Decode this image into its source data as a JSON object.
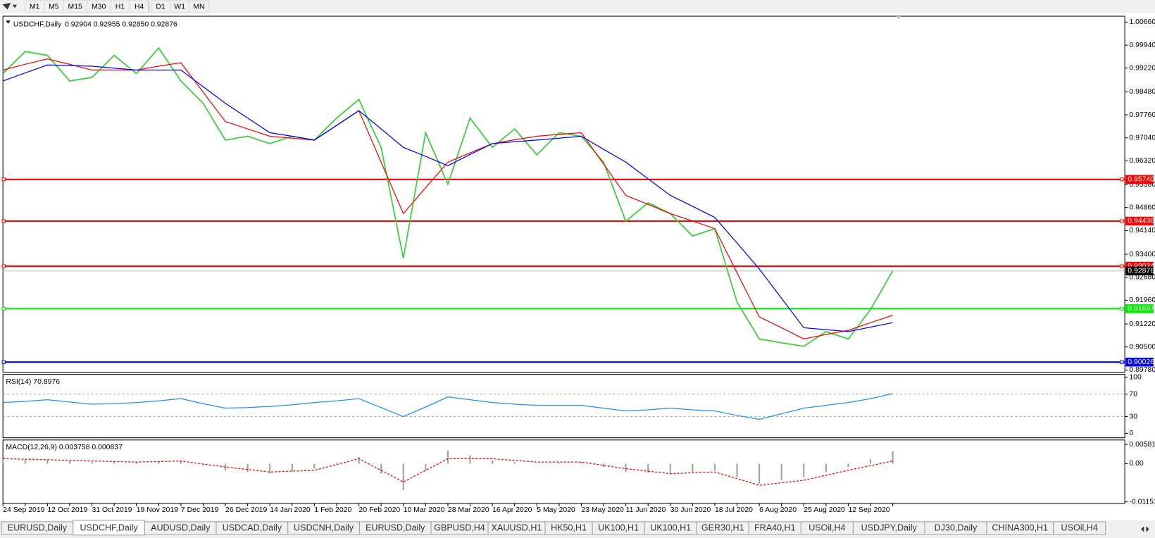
{
  "toolbar": {
    "timeframes": [
      "M1",
      "M5",
      "M15",
      "M30",
      "H1",
      "H4",
      "D1",
      "W1",
      "MN"
    ]
  },
  "chart_data": [
    {
      "type": "line",
      "title": "USDCHF,Daily",
      "subtitle": "0.92904 0.92955 0.92850 0.92876",
      "categories": [
        "24 Sep 2019",
        null,
        "12 Oct 2019",
        null,
        "31 Oct 2019",
        null,
        "19 Nov 2019",
        null,
        "7 Dec 2019",
        null,
        "26 Dec 2019",
        null,
        "14 Jan 2020",
        null,
        "1 Feb 2020",
        null,
        "20 Feb 2020",
        null,
        "10 Mar 2020",
        null,
        "28 Mar 2020",
        null,
        "16 Apr 2020",
        null,
        "5 May 2020",
        null,
        "23 May 2020",
        null,
        "11 Jun 2020",
        null,
        "30 Jun 2020",
        null,
        "18 Jul 2020",
        null,
        "6 Aug 2020",
        null,
        "25 Aug 2020",
        null,
        "12 Sep 2020",
        null,
        null
      ],
      "series": [
        {
          "color": "#32cd32",
          "values": [
            0.9905,
            0.9974,
            0.9962,
            0.9882,
            0.9893,
            0.9962,
            0.9905,
            0.9985,
            0.9882,
            0.9812,
            0.9697,
            0.9709,
            0.9686,
            0.9709,
            0.9697,
            0.9766,
            0.9824,
            0.9674,
            0.9328,
            0.972,
            0.9559,
            0.9766,
            0.9674,
            0.9732,
            0.9651,
            0.972,
            0.9709,
            0.9628,
            0.9443,
            0.9501,
            0.9467,
            0.9397,
            0.942,
            0.919,
            0.9075,
            0.9063,
            0.9052,
            0.9098,
            0.9075,
            0.9167,
            0.9288
          ]
        },
        {
          "color": "#ff0000",
          "values": [
            0.9916,
            0.9934,
            0.9951,
            0.9934,
            0.9916,
            0.9916,
            0.9916,
            0.9928,
            0.9939,
            0.9847,
            0.9755,
            0.9732,
            0.9709,
            0.9703,
            0.9697,
            0.9743,
            0.9789,
            0.9628,
            0.9467,
            0.9548,
            0.9628,
            0.9657,
            0.9686,
            0.9698,
            0.9709,
            0.9715,
            0.972,
            0.9622,
            0.9524,
            0.9496,
            0.9467,
            0.9444,
            0.942,
            0.9282,
            0.9144,
            0.911,
            0.9075,
            0.9089,
            0.9102,
            0.9126,
            0.9149
          ]
        },
        {
          "color": "#0000ff",
          "values": [
            0.9882,
            0.9907,
            0.9932,
            0.993,
            0.9928,
            0.9922,
            0.9916,
            0.9916,
            0.9916,
            0.9864,
            0.9812,
            0.9766,
            0.972,
            0.9709,
            0.9697,
            0.9743,
            0.9789,
            0.9732,
            0.9674,
            0.9646,
            0.9617,
            0.9652,
            0.9686,
            0.9692,
            0.9697,
            0.9703,
            0.9709,
            0.9668,
            0.9628,
            0.9576,
            0.9524,
            0.949,
            0.9455,
            0.9375,
            0.9294,
            0.9202,
            0.911,
            0.9104,
            0.9098,
            0.9112,
            0.9126
          ]
        }
      ],
      "levels": [
        {
          "value": 0.9574,
          "label": "0.95740",
          "color": "#ff0000"
        },
        {
          "value": 0.94436,
          "color": "#ff0000"
        },
        {
          "value": 0.93024,
          "color": "#ff0000"
        },
        {
          "value": 0.91697,
          "color": "#00ee00"
        },
        {
          "value": 0.90026,
          "color": "#0000ff"
        }
      ],
      "current_price": {
        "value": 0.92876,
        "color": "#000000"
      },
      "ylim": [
        0.8978,
        1.0066
      ],
      "yticks": [
        {
          "value": 1.0066,
          "label": "1.00660"
        },
        {
          "value": 0.9994,
          "label": "0.99940"
        },
        {
          "value": 0.9922,
          "label": "0.99220"
        },
        {
          "value": 0.9848,
          "label": "0.98480"
        },
        {
          "value": 0.9776,
          "label": "0.97760"
        },
        {
          "value": 0.9704,
          "label": "0.97040"
        },
        {
          "value": 0.9632,
          "label": "0.96320"
        },
        {
          "value": 0.9558,
          "label": "0.95580"
        },
        {
          "value": 0.9486,
          "label": "0.94860"
        },
        {
          "value": 0.9414,
          "label": "0.94140"
        },
        {
          "value": 0.934,
          "label": "0.93400"
        },
        {
          "value": 0.9268,
          "label": "0.92680"
        },
        {
          "value": 0.9196,
          "label": "0.91960"
        },
        {
          "value": 0.9122,
          "label": "0.91220"
        },
        {
          "value": 0.905,
          "label": "0.90500"
        },
        {
          "value": 0.8978,
          "label": "0.89780"
        }
      ]
    },
    {
      "type": "line",
      "title": "RSI(14) 70.8976",
      "series": [
        {
          "color": "#1e90ff",
          "values": [
            55,
            57,
            60,
            56,
            52,
            53,
            55,
            58,
            62,
            53,
            45,
            46,
            48,
            51,
            55,
            58,
            62,
            46,
            30,
            47,
            65,
            60,
            55,
            52,
            50,
            50,
            50,
            45,
            40,
            42,
            45,
            42,
            40,
            32,
            25,
            35,
            45,
            50,
            55,
            62,
            70.9
          ]
        }
      ],
      "ylim": [
        0,
        100
      ],
      "yticks": [
        100,
        70,
        30,
        0
      ],
      "dashed_ticks": [
        70,
        30
      ]
    },
    {
      "type": "bar",
      "title": "MACD(12,26,9) 0.003758 0.000837",
      "series": [
        {
          "color": "#a0a0a0",
          "values": [
            0.0015,
            0.00125,
            0.001,
            0.00075,
            0.0005,
            0.0005,
            0.0005,
            0.00075,
            0.001,
            -0.0005,
            -0.002,
            -0.0025,
            -0.003,
            -0.00225,
            -0.0015,
            0.00025,
            0.002,
            -0.003,
            -0.008,
            -0.002,
            0.004,
            0.0025,
            0.001,
            0.0005,
            0,
            0.00025,
            0.0005,
            -0.001,
            -0.0025,
            -0.00275,
            -0.003,
            -0.0025,
            -0.002,
            -0.004,
            -0.006,
            -0.005,
            -0.004,
            -0.0025,
            -0.001,
            0.0014,
            0.003758
          ]
        },
        {
          "type": "line",
          "dashed": true,
          "color": "#ff0000",
          "values": [
            0.0015,
            0.00135,
            0.0012,
            0.001,
            0.0008,
            0.00065,
            0.0005,
            0.00065,
            0.0008,
            -0.0001,
            -0.001,
            -0.00175,
            -0.0025,
            -0.00225,
            -0.002,
            -0.00025,
            0.0015,
            -0.002,
            -0.0055,
            -0.002,
            0.0015,
            0.0015,
            0.0015,
            0.001,
            0.0005,
            0.0005,
            0.0005,
            -0.0005,
            -0.0015,
            -0.00225,
            -0.003,
            -0.00275,
            -0.0025,
            -0.0045,
            -0.0065,
            -0.00575,
            -0.005,
            -0.0035,
            -0.002,
            -0.0006,
            0.000837
          ]
        }
      ],
      "ylim": [
        -0.011514,
        0.005818
      ],
      "yticks": [
        0.005818,
        {
          "value": 0,
          "label": "0.00"
        },
        -0.011514
      ]
    }
  ],
  "tabs": {
    "items": [
      "EURUSD,Daily",
      "USDCHF,Daily",
      "AUDUSD,Daily",
      "USDCAD,Daily",
      "USDCNH,Daily",
      "EURUSD,Daily",
      "GBPUSD,H4",
      "XAUUSD,H1",
      "HK50,H1",
      "UK100,H1",
      "UK100,H1",
      "GER30,H1",
      "FRA40,H1",
      "USOil,H4",
      "USDJPY,Daily",
      "DJ30,Daily",
      "CHINA300,H1",
      "USOil,H4"
    ],
    "active": 1
  }
}
